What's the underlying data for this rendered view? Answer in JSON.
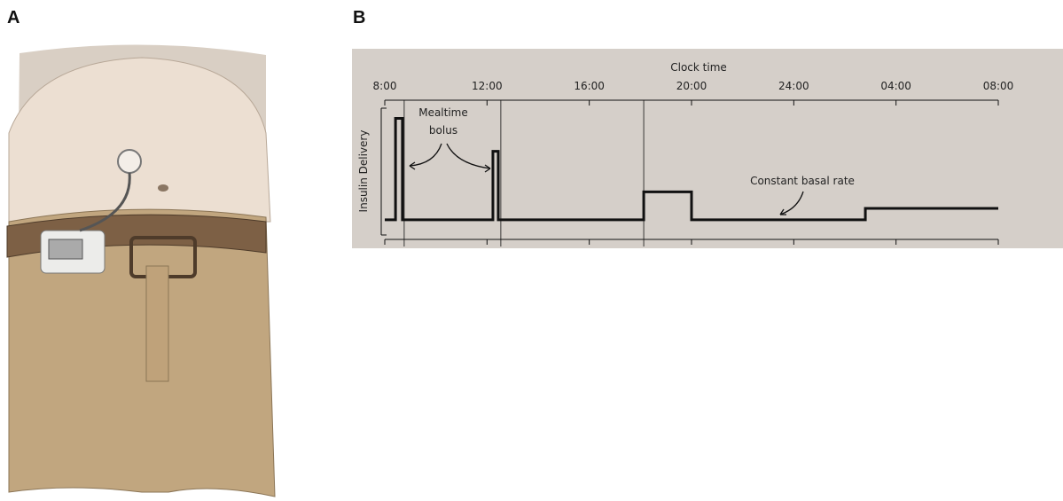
{
  "panels": [
    "A",
    "B"
  ],
  "chart_data": {
    "type": "line",
    "xlabel": "Clock time",
    "ylabel": "Insulin Delivery",
    "xlim": [
      8,
      32
    ],
    "ylim": [
      0,
      10
    ],
    "xticks": [
      {
        "value": 8,
        "label": "8:00"
      },
      {
        "value": 12,
        "label": "12:00"
      },
      {
        "value": 16,
        "label": "16:00"
      },
      {
        "value": 20,
        "label": "20:00"
      },
      {
        "value": 24,
        "label": "24:00"
      },
      {
        "value": 28,
        "label": "04:00"
      },
      {
        "value": 32,
        "label": "08:00"
      }
    ],
    "vlines": [
      8.76,
      12.54,
      18.13
    ],
    "series": [
      {
        "color": "#111111",
        "x": [
          8,
          8.42,
          8.42,
          8.69,
          8.69,
          12.23,
          12.23,
          12.44,
          12.44,
          18.13,
          18.13,
          20.0,
          20.0,
          26.8,
          26.8,
          32
        ],
        "values": [
          1.2,
          1.2,
          9.2,
          9.2,
          1.2,
          1.2,
          6.6,
          6.6,
          1.2,
          1.2,
          3.4,
          3.4,
          1.2,
          1.2,
          2.1,
          2.1
        ]
      }
    ],
    "annotations": [
      [
        "Mealtime",
        "bolus"
      ],
      [
        "Constant basal rate"
      ]
    ]
  }
}
